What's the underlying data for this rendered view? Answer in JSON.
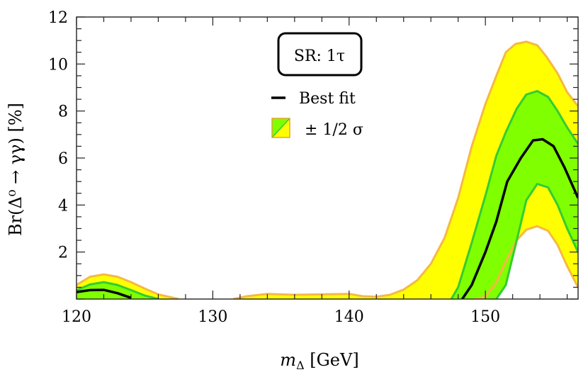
{
  "chart_data": {
    "type": "area",
    "xlabel": "m_Δ [GeV]",
    "xlabel_main": "m",
    "xlabel_sub": "Δ",
    "xlabel_unit": " [GeV]",
    "ylabel": "Br(Δ⁰ → γγ) [%]",
    "xlim": [
      120,
      156.8
    ],
    "ylim": [
      0,
      12
    ],
    "x_ticks": [
      120,
      130,
      140,
      150
    ],
    "y_ticks": [
      2,
      4,
      6,
      8,
      10,
      12
    ],
    "x_tick_labels": [
      "120",
      "130",
      "140",
      "150"
    ],
    "y_tick_labels": [
      "2",
      "4",
      "6",
      "8",
      "10",
      "12"
    ],
    "grid": false,
    "legend_position": "top-center",
    "annotation": "SR: 1τ",
    "legend": {
      "best_fit": "Best fit",
      "band": "± 1/2 σ"
    },
    "colors": {
      "best_fit": "#000000",
      "one_sigma_fill": "#80ff00",
      "one_sigma_edge": "#33cc33",
      "two_sigma_fill": "#ffff00",
      "two_sigma_edge": "#f5b942"
    },
    "series": [
      {
        "name": "Best fit",
        "role": "best_fit",
        "x": [
          120,
          121,
          122,
          123,
          124
        ],
        "y": [
          0.3,
          0.38,
          0.39,
          0.25,
          0.05
        ],
        "x_right": [
          148.3,
          149,
          150,
          150.8,
          151.6,
          152.6,
          153.5,
          154.2,
          155,
          155.8,
          156.8
        ],
        "y_right": [
          0,
          0.6,
          2.0,
          3.3,
          5.0,
          6.0,
          6.75,
          6.8,
          6.5,
          5.6,
          4.3
        ]
      }
    ],
    "bands": [
      {
        "name": "± 2σ",
        "role": "two_sigma",
        "upper_x": [
          120,
          121,
          122,
          123,
          124,
          125,
          126,
          127.5
        ],
        "upper_y": [
          0.6,
          0.95,
          1.05,
          0.95,
          0.72,
          0.45,
          0.2,
          0
        ],
        "upper2_x": [
          131.5,
          132.5,
          134,
          136,
          138,
          140,
          141,
          142,
          143,
          144,
          145,
          146,
          147,
          148,
          149,
          150,
          150.8,
          151.5,
          152.2,
          153,
          153.8,
          154.5,
          155.3,
          156,
          156.8
        ],
        "upper2_y": [
          0,
          0.12,
          0.22,
          0.18,
          0.2,
          0.22,
          0.12,
          0.1,
          0.18,
          0.4,
          0.8,
          1.5,
          2.6,
          4.3,
          6.5,
          8.3,
          9.5,
          10.5,
          10.85,
          10.95,
          10.8,
          10.3,
          9.6,
          8.8,
          8.2
        ],
        "lower_x": [
          149.2,
          150,
          150.8,
          151.5,
          152.3,
          153,
          153.8,
          154.6,
          155.3,
          156,
          156.8
        ],
        "lower_y": [
          0,
          0.1,
          0.7,
          1.6,
          2.5,
          2.95,
          3.1,
          2.9,
          2.3,
          1.4,
          0.5
        ]
      },
      {
        "name": "± 1σ",
        "role": "one_sigma",
        "upper_x": [
          120,
          121,
          122,
          123,
          124,
          125,
          126
        ],
        "upper_y": [
          0.38,
          0.62,
          0.72,
          0.6,
          0.38,
          0.15,
          0
        ],
        "upper2_x": [
          147.5,
          148,
          149,
          150,
          150.8,
          151.5,
          152.3,
          153,
          153.8,
          154.6,
          155.3,
          156,
          156.8
        ],
        "upper2_y": [
          0,
          0.5,
          2.4,
          4.4,
          6.1,
          7.1,
          8.1,
          8.7,
          8.85,
          8.6,
          8.0,
          7.3,
          6.6
        ],
        "lower_x": [
          120,
          121,
          122,
          123.5
        ],
        "lower_y": [
          0,
          0.02,
          0.05,
          0
        ],
        "lower2_x": [
          150.8,
          151.5,
          152.3,
          153,
          153.8,
          154.6,
          155.3,
          156,
          156.8
        ],
        "lower2_y": [
          0,
          0.6,
          2.5,
          4.2,
          4.9,
          4.75,
          4.0,
          3.0,
          2.0
        ]
      }
    ]
  }
}
